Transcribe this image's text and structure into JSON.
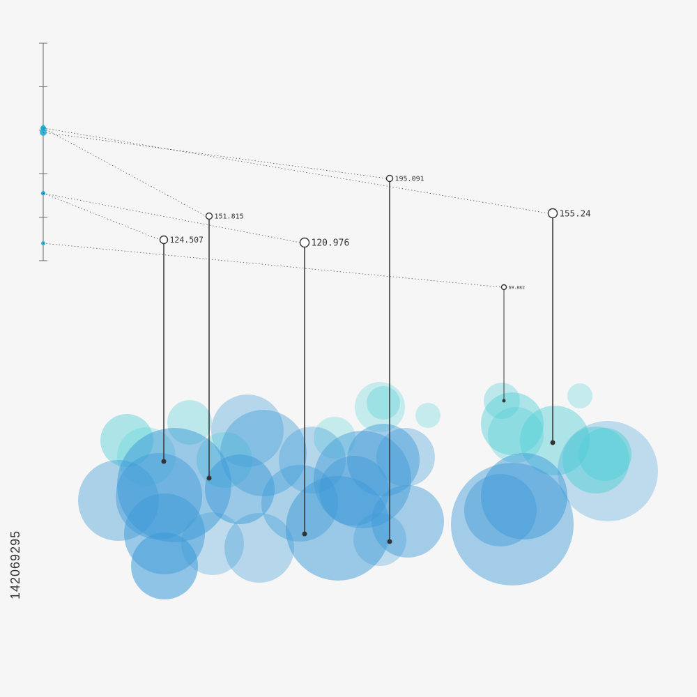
{
  "chart_data": {
    "type": "scatter",
    "title": "",
    "xlabel": "",
    "ylabel": "",
    "scale": {
      "ticks": 6
    },
    "series": [
      {
        "label": "124.507",
        "value": 124.507,
        "scale_pos": 3.45
      },
      {
        "label": "151.815",
        "value": 151.815,
        "scale_pos": 1.95
      },
      {
        "label": "120.976",
        "value": 120.976,
        "scale_pos": 3.45
      },
      {
        "label": "195.091",
        "value": 195.091,
        "scale_pos": 2.05
      },
      {
        "label": "69.882",
        "value": 69.882,
        "scale_pos": 4.6
      },
      {
        "label": "155.24",
        "value": 155.24,
        "scale_pos": 1.95
      }
    ],
    "colors": {
      "blue": "#3d9ad8",
      "cyan": "#52cfd6",
      "line": "#333333",
      "dot_scale": "#1ba9d4",
      "background": "#f6f6f6"
    }
  },
  "stock_id": "142069295"
}
